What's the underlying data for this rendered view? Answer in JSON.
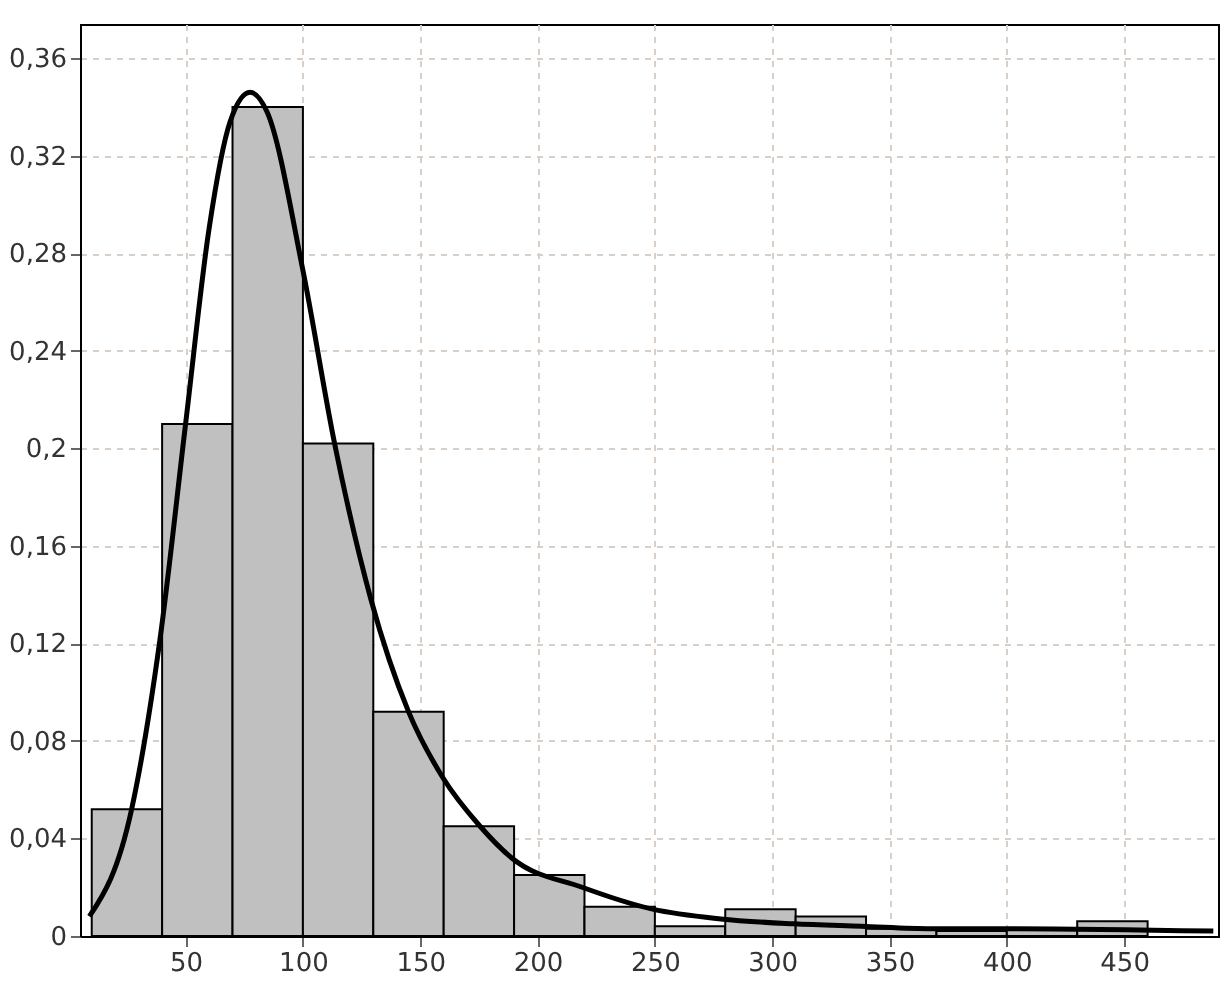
{
  "chart_data": {
    "type": "histogram",
    "bins": [
      10,
      40,
      70,
      100,
      130,
      160,
      190,
      220,
      250,
      280,
      310,
      340,
      370,
      400,
      430,
      460,
      490
    ],
    "values": [
      0.052,
      0.21,
      0.34,
      0.202,
      0.092,
      0.045,
      0.025,
      0.012,
      0.004,
      0.011,
      0.008,
      0.003,
      0.002,
      0.003,
      0.006,
      null
    ],
    "color": "#c0c0c0",
    "series": [
      {
        "type": "line",
        "color": "#000000",
        "x": [
          9,
          27,
          39,
          50,
          60,
          69,
          77.5,
          84.7,
          100,
          113.5,
          129,
          145,
          159.6,
          175.5,
          189,
          219,
          249,
          278,
          309,
          338,
          368,
          398,
          488
        ],
        "values": [
          0.008,
          0.052,
          0.121,
          0.21,
          0.29,
          0.334,
          0.346,
          0.338,
          0.273,
          0.202,
          0.138,
          0.092,
          0.065,
          0.045,
          0.032,
          0.02,
          0.011,
          0.007,
          0.005,
          0.004,
          0.003,
          0.003,
          0.002
        ]
      }
    ],
    "xlim": [
      5,
      490
    ],
    "xticks": [
      50,
      100,
      150,
      200,
      250,
      300,
      350,
      400,
      450
    ],
    "ylim": [
      0,
      0.374
    ],
    "yticks": [
      0,
      {
        "value": 0.04,
        "label": "0,04"
      },
      {
        "value": 0.08,
        "label": "0,08"
      },
      {
        "value": 0.12,
        "label": "0,12"
      },
      {
        "value": 0.16,
        "label": "0,16"
      },
      {
        "value": 0.2,
        "label": "0,2"
      },
      {
        "value": 0.24,
        "label": "0,24"
      },
      {
        "value": 0.28,
        "label": "0,28"
      },
      {
        "value": 0.32,
        "label": "0,32"
      },
      {
        "value": 0.36,
        "label": "0,36"
      }
    ],
    "grid": true
  }
}
